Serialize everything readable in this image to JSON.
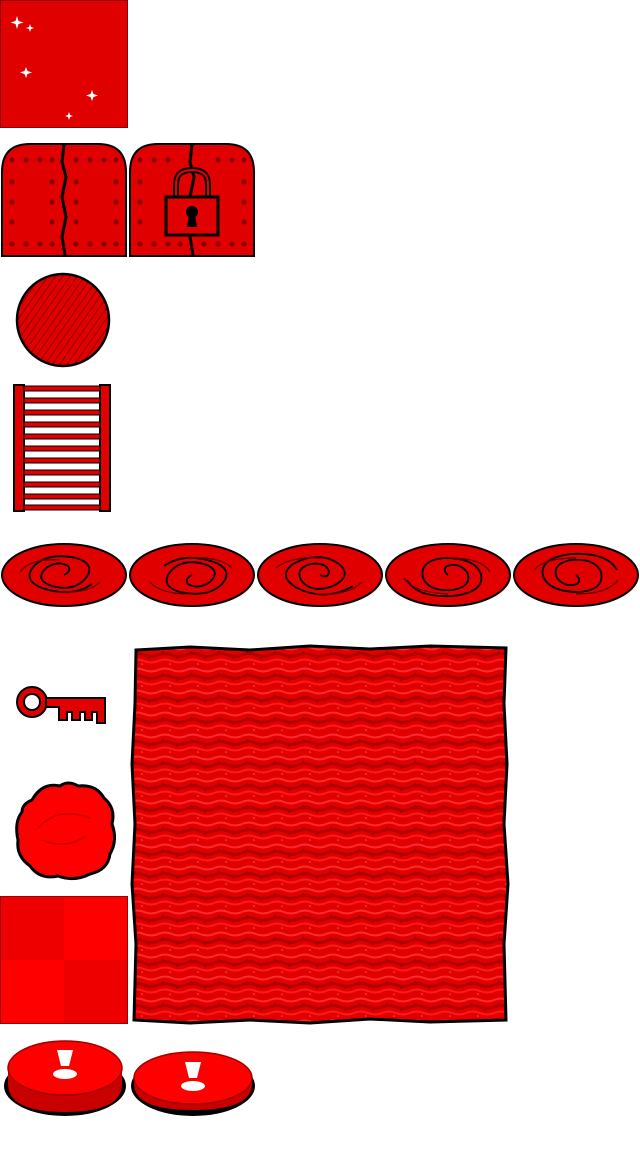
{
  "sheet": {
    "background": "#ffffff",
    "palette": {
      "red": "#e00000",
      "bright_red": "#ff0000",
      "dark_red": "#a00000",
      "outline": "#000000",
      "white": "#ffffff"
    },
    "sprites": [
      {
        "name": "sparkle-floor-tile",
        "icon": "sparkle-icon"
      },
      {
        "name": "door-closed",
        "icon": "door-icon"
      },
      {
        "name": "door-locked",
        "icon": "padlock-icon"
      },
      {
        "name": "round-disc",
        "icon": "disc-icon"
      },
      {
        "name": "ladder",
        "icon": "ladder-icon"
      },
      {
        "name": "vortex-portal",
        "icon": "swirl-icon",
        "frames": 5
      },
      {
        "name": "key",
        "icon": "key-icon"
      },
      {
        "name": "blob",
        "icon": "blob-icon"
      },
      {
        "name": "red-checker-tile",
        "icon": "checker-icon"
      },
      {
        "name": "carpet-large",
        "icon": "carpet-icon"
      },
      {
        "name": "floor-button",
        "icon": "button-icon",
        "states": [
          "raised",
          "pressed"
        ]
      }
    ]
  }
}
